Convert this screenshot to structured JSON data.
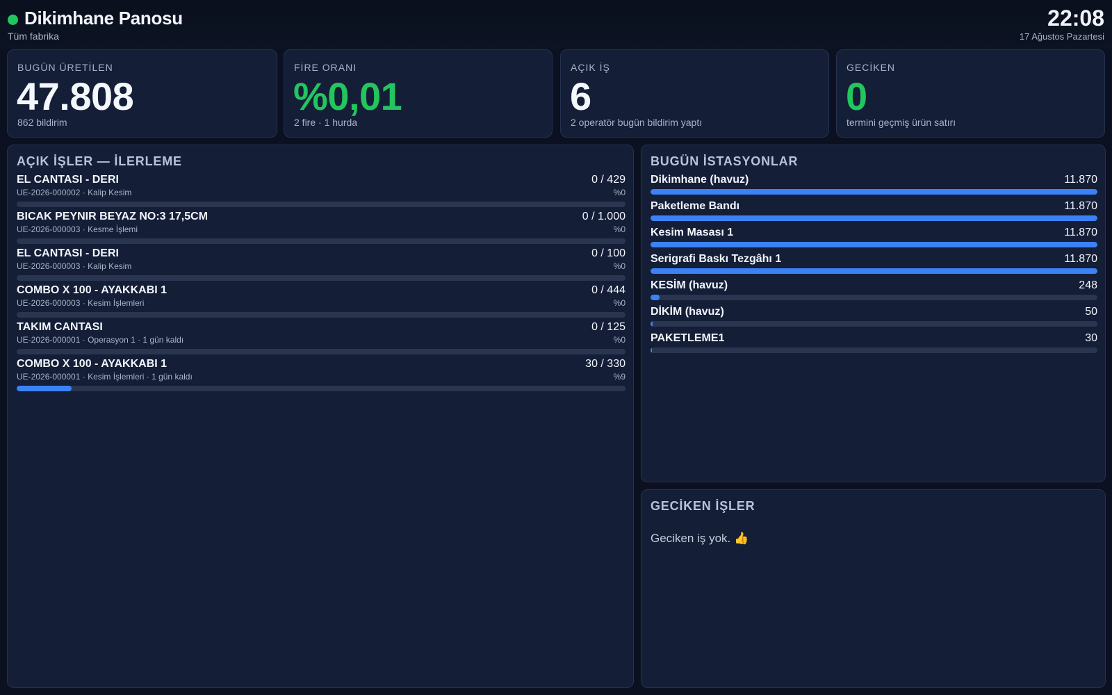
{
  "header": {
    "title": "Dikimhane Panosu",
    "subtitle": "Tüm fabrika",
    "time": "22:08",
    "date": "17 Ağustos Pazartesi",
    "status_color": "#22c55e"
  },
  "stats": [
    {
      "label": "BUGÜN ÜRETİLEN",
      "value": "47.808",
      "note": "862 bildirim",
      "color": "#f4f7fc"
    },
    {
      "label": "FİRE ORANI",
      "value": "%0,01",
      "note": "2 fire · 1 hurda",
      "color": "#22c55e"
    },
    {
      "label": "AÇIK İŞ",
      "value": "6",
      "note": "2 operatör bugün bildirim yaptı",
      "color": "#f4f7fc"
    },
    {
      "label": "GECİKEN",
      "value": "0",
      "note": "termini geçmiş ürün satırı",
      "color": "#22c55e"
    }
  ],
  "jobs_panel": {
    "title": "AÇIK İŞLER — İLERLEME",
    "items": [
      {
        "name": "EL CANTASI - DERI",
        "meta": "UE-2026-000002 · Kalip Kesim",
        "count": "0 / 429",
        "percent_label": "%0",
        "progress": 0
      },
      {
        "name": "BICAK PEYNIR BEYAZ NO:3 17,5CM",
        "meta": "UE-2026-000003 · Kesme İşlemi",
        "count": "0 / 1.000",
        "percent_label": "%0",
        "progress": 0
      },
      {
        "name": "EL CANTASI - DERI",
        "meta": "UE-2026-000003 · Kalip Kesim",
        "count": "0 / 100",
        "percent_label": "%0",
        "progress": 0
      },
      {
        "name": "COMBO X 100 - AYAKKABI 1",
        "meta": "UE-2026-000003 · Kesim İşlemleri",
        "count": "0 / 444",
        "percent_label": "%0",
        "progress": 0
      },
      {
        "name": "TAKIM CANTASI",
        "meta": "UE-2026-000001 · Operasyon 1 · 1 gün kaldı",
        "count": "0 / 125",
        "percent_label": "%0",
        "progress": 0
      },
      {
        "name": "COMBO X 100 - AYAKKABI 1",
        "meta": "UE-2026-000001 · Kesim İşlemleri · 1 gün kaldı",
        "count": "30 / 330",
        "percent_label": "%9",
        "progress": 0.09
      }
    ]
  },
  "stations_panel": {
    "title": "BUGÜN İSTASYONLAR",
    "items": [
      {
        "name": "Dikimhane (havuz)",
        "value": "11.870",
        "amount": 11870
      },
      {
        "name": "Paketleme Bandı",
        "value": "11.870",
        "amount": 11870
      },
      {
        "name": "Kesim Masası 1",
        "value": "11.870",
        "amount": 11870
      },
      {
        "name": "Serigrafi Baskı Tezgâhı 1",
        "value": "11.870",
        "amount": 11870
      },
      {
        "name": "KESİM (havuz)",
        "value": "248",
        "amount": 248
      },
      {
        "name": "DİKİM (havuz)",
        "value": "50",
        "amount": 50
      },
      {
        "name": "PAKETLEME1",
        "value": "30",
        "amount": 30
      }
    ],
    "max_amount": 11870,
    "bar_color": "#3b82f6"
  },
  "overdue_panel": {
    "title": "GECİKEN İŞLER",
    "empty_message": "Geciken iş yok. 👍"
  }
}
